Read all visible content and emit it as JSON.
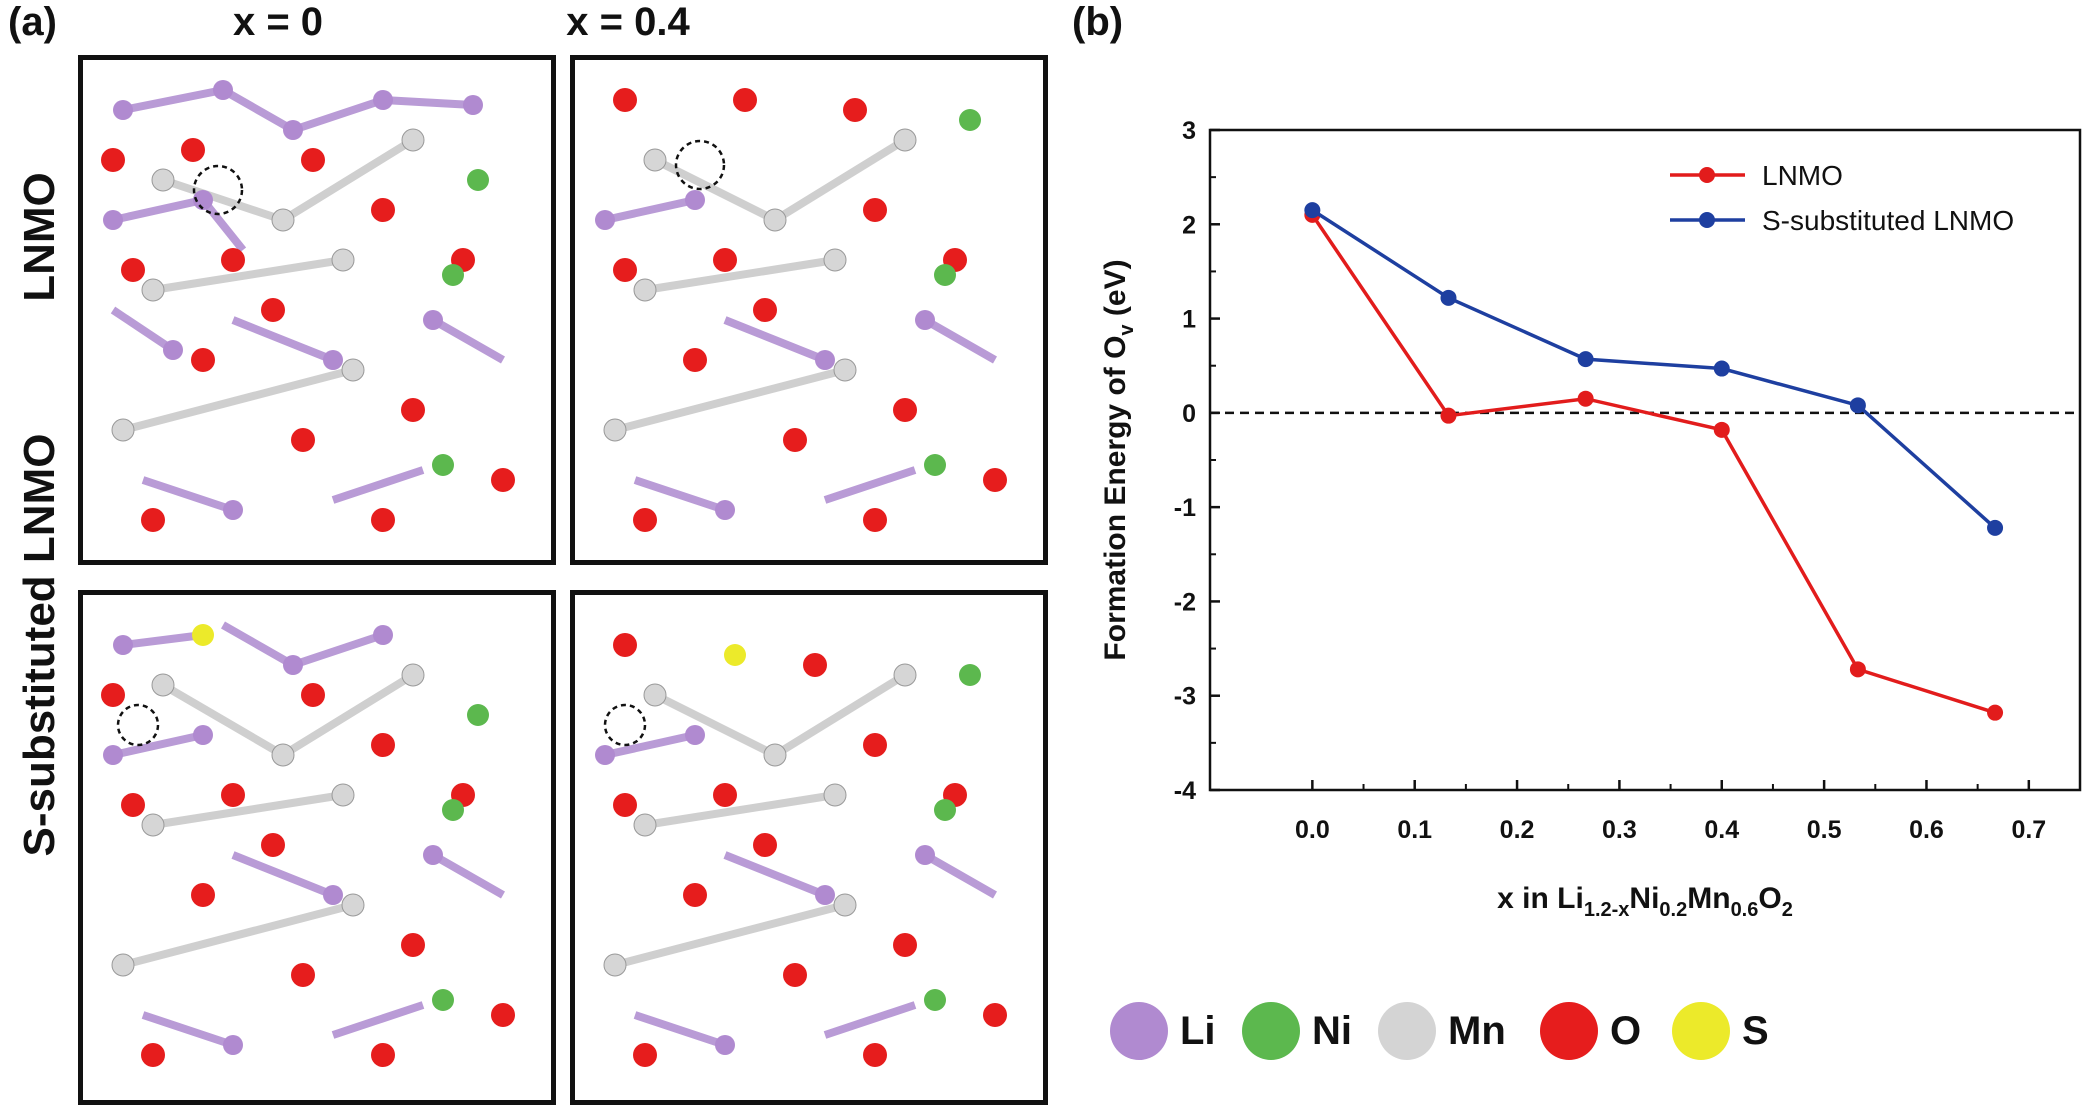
{
  "panel_a": {
    "label": "(a)",
    "col_labels": [
      "x = 0",
      "x = 0.4"
    ],
    "row_labels": [
      "LNMO",
      "S-substituted LNMO"
    ]
  },
  "panel_b": {
    "label": "(b)"
  },
  "atom_legend": [
    {
      "name": "Li",
      "color": "#b08ad0"
    },
    {
      "name": "Ni",
      "color": "#5cb84e"
    },
    {
      "name": "Mn",
      "color": "#d4d4d4"
    },
    {
      "name": "O",
      "color": "#e61d1d"
    },
    {
      "name": "S",
      "color": "#ecea2a"
    }
  ],
  "chart_data": {
    "type": "line",
    "ylabel": "Formation Energy of O",
    "ylabel_sub": "v",
    "ylabel_unit": " (eV)",
    "xlabel_parts": [
      "x in Li",
      "1.2-x",
      "Ni",
      "0.2",
      "Mn",
      "0.6",
      "O",
      "2"
    ],
    "xlim": [
      -0.1,
      0.75
    ],
    "ylim": [
      -4,
      3
    ],
    "xticks": [
      "0.0",
      "0.1",
      "0.2",
      "0.3",
      "0.4",
      "0.5",
      "0.6",
      "0.7"
    ],
    "yticks": [
      "-4",
      "-3",
      "-2",
      "-1",
      "0",
      "1",
      "2",
      "3"
    ],
    "reference_line_y": 0,
    "legend_position": "top-right",
    "series": [
      {
        "name": "LNMO",
        "color": "#e21c1c",
        "x": [
          0.0,
          0.133,
          0.267,
          0.4,
          0.533,
          0.667
        ],
        "y": [
          2.1,
          -0.03,
          0.15,
          -0.18,
          -2.72,
          -3.18
        ]
      },
      {
        "name": "S-substituted LNMO",
        "color": "#1e3fa0",
        "x": [
          0.0,
          0.133,
          0.267,
          0.4,
          0.533,
          0.667
        ],
        "y": [
          2.15,
          1.22,
          0.57,
          0.47,
          0.08,
          -1.22
        ]
      }
    ]
  }
}
